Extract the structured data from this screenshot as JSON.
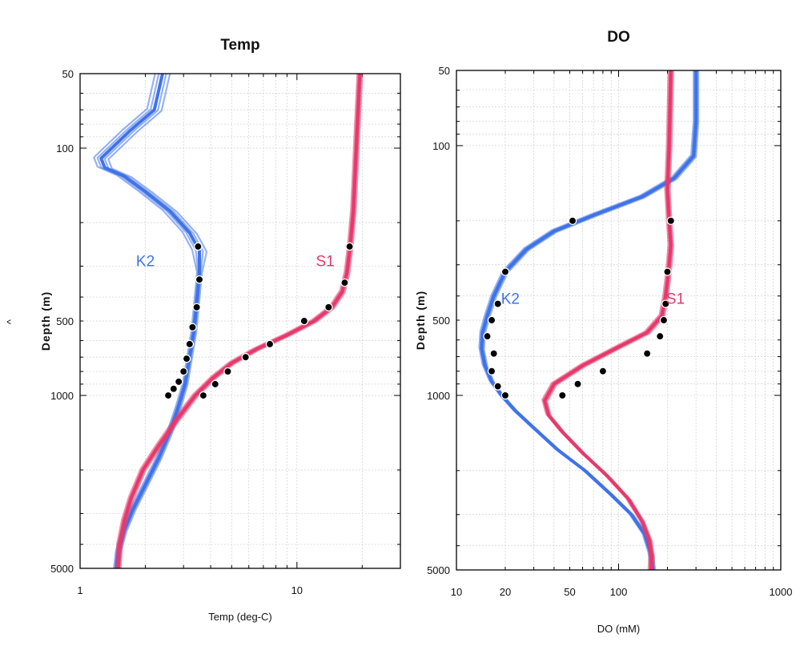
{
  "colors": {
    "k2": "#3f73e8",
    "s1": "#e53a6c",
    "marker_fill": "#000000",
    "marker_stroke": "#ffffff"
  },
  "chart_data": [
    {
      "type": "line",
      "title": "Temp",
      "xlabel": "Temp (deg-C)",
      "ylabel": "Depth (m)",
      "ylabel_marker": "^",
      "x_scale": "log",
      "y_scale": "log",
      "y_inverted": true,
      "xlim": [
        1,
        30
      ],
      "ylim": [
        50,
        5000
      ],
      "x_ticks": [
        {
          "value": 1,
          "label": "1"
        },
        {
          "value": 10,
          "label": "10"
        }
      ],
      "y_ticks": [
        {
          "value": 50,
          "label": "50"
        },
        {
          "value": 100,
          "label": "100"
        },
        {
          "value": 500,
          "label": "500"
        },
        {
          "value": 1000,
          "label": "1000"
        },
        {
          "value": 5000,
          "label": "5000"
        }
      ],
      "grid": true,
      "series": [
        {
          "name": "K2",
          "color_key": "k2",
          "label_at": {
            "x": 2.0,
            "y": 300
          },
          "x": [
            2.4,
            2.2,
            1.7,
            1.25,
            1.3,
            1.6,
            2.0,
            2.6,
            3.2,
            3.55,
            3.55,
            3.45,
            3.35,
            3.2,
            3.05,
            2.85,
            2.6,
            2.3,
            2.0,
            1.75,
            1.6,
            1.5,
            1.47
          ],
          "y": [
            50,
            70,
            85,
            110,
            120,
            130,
            150,
            180,
            220,
            260,
            320,
            420,
            550,
            700,
            900,
            1100,
            1400,
            1800,
            2300,
            2900,
            3500,
            4300,
            5000
          ]
        },
        {
          "name": "S1",
          "color_key": "s1",
          "label_at": {
            "x": 13.5,
            "y": 300
          },
          "x": [
            19.5,
            19.0,
            18.6,
            18.2,
            17.6,
            17.0,
            16.2,
            14.5,
            12.0,
            9.0,
            6.5,
            5.0,
            4.1,
            3.4,
            2.8,
            2.3,
            1.95,
            1.72,
            1.6,
            1.52,
            1.5
          ],
          "y": [
            50,
            80,
            120,
            180,
            250,
            320,
            380,
            440,
            500,
            570,
            650,
            740,
            850,
            1000,
            1250,
            1600,
            2000,
            2600,
            3200,
            4000,
            5000
          ]
        }
      ],
      "markers": [
        {
          "series": "K2",
          "x": [
            3.5,
            3.55,
            3.45,
            3.3,
            3.2,
            3.1,
            3.0,
            2.85,
            2.7,
            2.55
          ],
          "y": [
            250,
            340,
            440,
            530,
            620,
            710,
            800,
            880,
            940,
            1000
          ]
        },
        {
          "series": "S1",
          "x": [
            17.5,
            16.6,
            14.0,
            10.8,
            7.5,
            5.8,
            4.8,
            4.2,
            3.7
          ],
          "y": [
            250,
            350,
            440,
            500,
            620,
            700,
            800,
            900,
            1000
          ]
        }
      ]
    },
    {
      "type": "line",
      "title": "DO",
      "xlabel": "DO (mM)",
      "ylabel": "Depth (m)",
      "x_scale": "log",
      "y_scale": "log",
      "y_inverted": true,
      "xlim": [
        10,
        1000
      ],
      "ylim": [
        50,
        5000
      ],
      "x_ticks": [
        {
          "value": 10,
          "label": "10"
        },
        {
          "value": 20,
          "label": "20"
        },
        {
          "value": 50,
          "label": "50"
        },
        {
          "value": 100,
          "label": "100"
        },
        {
          "value": 1000,
          "label": "1000"
        }
      ],
      "y_ticks": [
        {
          "value": 50,
          "label": "50"
        },
        {
          "value": 100,
          "label": "100"
        },
        {
          "value": 500,
          "label": "500"
        },
        {
          "value": 1000,
          "label": "1000"
        },
        {
          "value": 5000,
          "label": "5000"
        }
      ],
      "grid": true,
      "series": [
        {
          "name": "K2",
          "color_key": "k2",
          "label_at": {
            "x": 21.5,
            "y": 430
          },
          "x": [
            300,
            300,
            290,
            220,
            140,
            70,
            40,
            27,
            20,
            17,
            15.5,
            14.5,
            14.3,
            15,
            16.5,
            19,
            23,
            30,
            42,
            62,
            90,
            120,
            145,
            158,
            163
          ],
          "y": [
            50,
            80,
            110,
            135,
            160,
            190,
            220,
            260,
            320,
            400,
            480,
            560,
            650,
            760,
            880,
            1000,
            1150,
            1350,
            1650,
            2000,
            2500,
            3000,
            3600,
            4300,
            5000
          ]
        },
        {
          "name": "S1",
          "color_key": "s1",
          "label_at": {
            "x": 224,
            "y": 430
          },
          "x": [
            210,
            205,
            200,
            205,
            210,
            205,
            200,
            195,
            185,
            150,
            100,
            60,
            40,
            35,
            37,
            45,
            60,
            85,
            115,
            140,
            155,
            160,
            158
          ],
          "y": [
            50,
            100,
            150,
            200,
            250,
            300,
            350,
            400,
            480,
            560,
            640,
            760,
            900,
            1050,
            1200,
            1400,
            1700,
            2100,
            2600,
            3200,
            3800,
            4400,
            5000
          ]
        }
      ],
      "markers": [
        {
          "series": "K2",
          "x": [
            52,
            20,
            18,
            16.5,
            15.5,
            17,
            16.5,
            18,
            20
          ],
          "y": [
            200,
            320,
            430,
            500,
            580,
            680,
            800,
            920,
            1000
          ]
        },
        {
          "series": "S1",
          "x": [
            210,
            200,
            195,
            190,
            180,
            150,
            80,
            56,
            45
          ],
          "y": [
            200,
            320,
            430,
            500,
            580,
            680,
            800,
            900,
            1000
          ]
        }
      ]
    }
  ]
}
